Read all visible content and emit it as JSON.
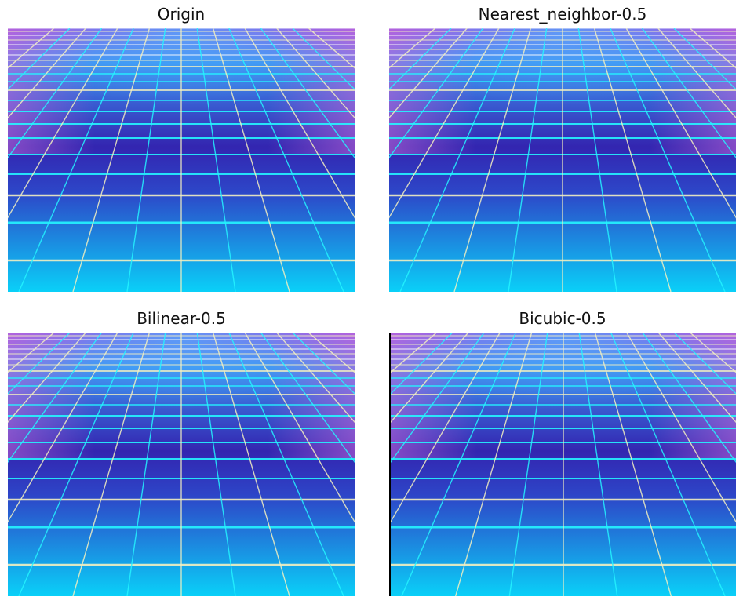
{
  "panels": [
    {
      "title": "Origin"
    },
    {
      "title": "Nearest_neighbor-0.5"
    },
    {
      "title": "Bilinear-0.5"
    },
    {
      "title": "Bicubic-0.5"
    }
  ],
  "colors": {
    "sky_top": "#a44fe0",
    "sky_mid": "#3f8ff0",
    "floor_dark": "#3325b0",
    "floor_bottom": "#0ad0f8",
    "grid_cyan": "#25f5ff",
    "grid_pale": "#f3f0c0",
    "grid_white": "#ffffff"
  }
}
